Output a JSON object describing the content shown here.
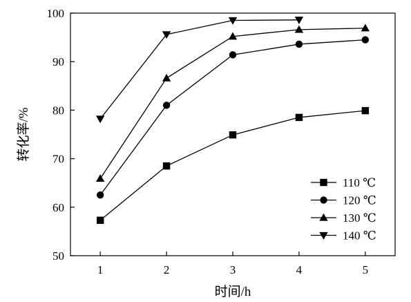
{
  "chart_data": {
    "type": "line",
    "title": "",
    "xlabel": "时间/h",
    "ylabel": "转化率/%",
    "x": [
      1,
      2,
      3,
      4,
      5
    ],
    "xticks": [
      1,
      2,
      3,
      4,
      5
    ],
    "xlim": [
      0.55,
      5.45
    ],
    "ylim": [
      50,
      100
    ],
    "yticks": [
      50,
      60,
      70,
      80,
      90,
      100
    ],
    "grid": false,
    "legend_position": "bottom-right",
    "line_color": "#000000",
    "series": [
      {
        "name": "110 ℃",
        "marker": "square",
        "values": [
          57.3,
          68.5,
          74.9,
          78.5,
          79.9
        ]
      },
      {
        "name": "120 ℃",
        "marker": "circle",
        "values": [
          62.5,
          81.0,
          91.4,
          93.6,
          94.5
        ]
      },
      {
        "name": "130 ℃",
        "marker": "triangle-up",
        "values": [
          65.9,
          86.6,
          95.2,
          96.6,
          96.9
        ]
      },
      {
        "name": "140 ℃",
        "marker": "triangle-down",
        "values": [
          78.2,
          95.6,
          98.5,
          98.6,
          null
        ]
      }
    ]
  }
}
